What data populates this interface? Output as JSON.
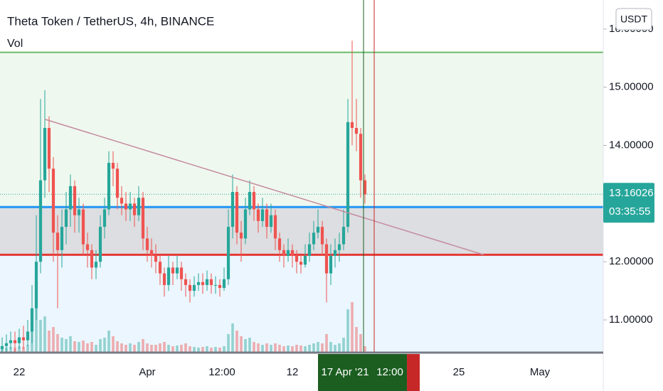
{
  "chart_data": {
    "type": "candlestick",
    "title": "Theta Token / TetherUS, 4h, BINANCE",
    "volume_label": "Vol",
    "currency": "USDT",
    "up_color": "#26a69a",
    "down_color": "#ef5350",
    "xlim": [
      -0.5,
      140.83
    ],
    "ylim": [
      10.45,
      16.5
    ],
    "yticks": [
      {
        "value": 16,
        "label": "16.00000"
      },
      {
        "value": 15,
        "label": "15.00000"
      },
      {
        "value": 14,
        "label": "14.00000"
      },
      {
        "value": 12,
        "label": "12.00000"
      },
      {
        "value": 11,
        "label": "11.00000"
      }
    ],
    "xticks": [
      {
        "value": 4,
        "label": "22"
      },
      {
        "value": 34,
        "label": "Apr"
      },
      {
        "value": 51.5,
        "label": "12:00"
      },
      {
        "value": 68,
        "label": "12"
      },
      {
        "value": 107,
        "label": "25"
      },
      {
        "value": 126,
        "label": "May"
      }
    ],
    "last_price": 13.16026,
    "countdown": "03:35:55",
    "levels": [
      {
        "price": 15.6,
        "color": "#66bb6a",
        "fill": "rgba(76,175,80,0.09)"
      },
      {
        "price": 12.94,
        "color": "#2196f3",
        "fill": "rgba(120,123,134,0.25)"
      },
      {
        "price": 12.12,
        "color": "#e53935",
        "fill": "rgba(33,150,243,0.09)"
      }
    ],
    "trendline": {
      "x": [
        10,
        112.8
      ],
      "y": [
        14.45,
        12.12
      ],
      "color": "#c48b9f"
    },
    "markers": [
      {
        "x": 84.67,
        "label": "17 Apr '21",
        "color": "#1b5e20"
      },
      {
        "x": 87.17,
        "label": "12:00",
        "color": "#c62828"
      }
    ],
    "candles": [
      [
        10.5,
        10.7,
        10.4,
        10.55
      ],
      [
        10.55,
        10.75,
        10.45,
        10.6
      ],
      [
        10.6,
        10.8,
        10.5,
        10.65
      ],
      [
        10.65,
        10.8,
        10.45,
        10.6
      ],
      [
        10.6,
        10.85,
        10.5,
        10.7
      ],
      [
        10.7,
        10.9,
        10.5,
        10.65
      ],
      [
        10.65,
        11.0,
        10.55,
        10.8
      ],
      [
        10.8,
        11.6,
        10.6,
        11.2
      ],
      [
        11.2,
        12.8,
        11.0,
        12.0
      ],
      [
        12.0,
        14.8,
        11.8,
        13.4
      ],
      [
        13.4,
        14.95,
        13.1,
        14.3
      ],
      [
        14.3,
        14.5,
        13.2,
        13.6
      ],
      [
        13.6,
        13.8,
        12.0,
        12.5
      ],
      [
        12.5,
        12.8,
        11.2,
        12.2
      ],
      [
        12.2,
        12.9,
        11.9,
        12.6
      ],
      [
        12.6,
        13.2,
        12.3,
        12.9
      ],
      [
        12.9,
        13.5,
        12.6,
        13.3
      ],
      [
        13.3,
        13.4,
        12.5,
        12.8
      ],
      [
        12.8,
        13.1,
        12.5,
        12.9
      ],
      [
        12.9,
        13.0,
        12.1,
        12.3
      ],
      [
        12.3,
        12.5,
        11.9,
        12.2
      ],
      [
        12.2,
        12.3,
        11.7,
        11.9
      ],
      [
        11.9,
        12.2,
        11.7,
        12.0
      ],
      [
        12.0,
        12.8,
        11.9,
        12.6
      ],
      [
        12.6,
        13.1,
        12.4,
        12.9
      ],
      [
        12.9,
        13.9,
        12.8,
        13.7
      ],
      [
        13.7,
        13.9,
        13.3,
        13.6
      ],
      [
        13.6,
        13.7,
        12.9,
        13.1
      ],
      [
        13.1,
        13.3,
        12.8,
        13.0
      ],
      [
        13.0,
        13.2,
        12.7,
        12.9
      ],
      [
        12.9,
        13.2,
        12.7,
        13.0
      ],
      [
        13.0,
        13.1,
        12.6,
        12.8
      ],
      [
        12.8,
        13.3,
        12.7,
        13.1
      ],
      [
        13.1,
        13.2,
        12.2,
        12.4
      ],
      [
        12.4,
        12.6,
        12.0,
        12.2
      ],
      [
        12.2,
        12.4,
        11.9,
        12.1
      ],
      [
        12.1,
        12.3,
        11.8,
        12.0
      ],
      [
        12.0,
        12.1,
        11.6,
        11.8
      ],
      [
        11.8,
        11.9,
        11.4,
        11.6
      ],
      [
        11.6,
        12.1,
        11.5,
        11.9
      ],
      [
        11.9,
        12.0,
        11.6,
        11.8
      ],
      [
        11.8,
        12.1,
        11.7,
        11.9
      ],
      [
        11.9,
        12.0,
        11.5,
        11.7
      ],
      [
        11.7,
        11.8,
        11.4,
        11.6
      ],
      [
        11.6,
        11.7,
        11.3,
        11.5
      ],
      [
        11.5,
        11.75,
        11.4,
        11.6
      ],
      [
        11.6,
        11.8,
        11.5,
        11.65
      ],
      [
        11.65,
        11.8,
        11.45,
        11.6
      ],
      [
        11.6,
        11.85,
        11.5,
        11.7
      ],
      [
        11.7,
        11.8,
        11.45,
        11.6
      ],
      [
        11.6,
        11.75,
        11.45,
        11.6
      ],
      [
        11.6,
        11.7,
        11.4,
        11.55
      ],
      [
        11.55,
        11.9,
        11.5,
        11.7
      ],
      [
        11.7,
        12.9,
        11.6,
        12.6
      ],
      [
        12.6,
        13.5,
        12.4,
        13.2
      ],
      [
        13.2,
        13.3,
        12.3,
        12.5
      ],
      [
        12.5,
        12.7,
        12.0,
        12.4
      ],
      [
        12.4,
        13.1,
        12.3,
        12.9
      ],
      [
        12.9,
        13.4,
        12.8,
        13.2
      ],
      [
        13.2,
        13.3,
        12.7,
        12.9
      ],
      [
        12.9,
        13.0,
        12.5,
        12.7
      ],
      [
        12.7,
        13.1,
        12.6,
        12.9
      ],
      [
        12.9,
        13.0,
        12.4,
        12.6
      ],
      [
        12.6,
        13.0,
        12.5,
        12.8
      ],
      [
        12.8,
        12.9,
        12.2,
        12.4
      ],
      [
        12.4,
        12.5,
        12.0,
        12.2
      ],
      [
        12.2,
        12.3,
        11.9,
        12.1
      ],
      [
        12.1,
        12.4,
        12.0,
        12.2
      ],
      [
        12.2,
        12.3,
        11.9,
        12.1
      ],
      [
        12.1,
        12.2,
        11.8,
        12.0
      ],
      [
        12.0,
        12.1,
        11.8,
        11.95
      ],
      [
        11.95,
        12.3,
        11.9,
        12.1
      ],
      [
        12.1,
        12.5,
        12.0,
        12.3
      ],
      [
        12.3,
        12.7,
        12.2,
        12.5
      ],
      [
        12.5,
        12.9,
        12.4,
        12.6
      ],
      [
        12.6,
        12.7,
        12.1,
        12.3
      ],
      [
        12.3,
        12.4,
        11.3,
        11.8
      ],
      [
        11.8,
        12.3,
        11.6,
        12.1
      ],
      [
        12.1,
        12.4,
        11.9,
        12.2
      ],
      [
        12.2,
        12.5,
        12.0,
        12.3
      ],
      [
        12.3,
        12.9,
        12.2,
        12.6
      ],
      [
        12.6,
        14.8,
        12.5,
        14.4
      ],
      [
        14.4,
        15.8,
        14.0,
        14.3
      ],
      [
        14.3,
        14.8,
        13.9,
        14.2
      ],
      [
        14.2,
        14.3,
        13.1,
        13.4
      ],
      [
        13.4,
        13.5,
        13.0,
        13.16
      ]
    ],
    "volume": [
      8,
      6,
      7,
      6,
      8,
      7,
      10,
      40,
      65,
      45,
      50,
      30,
      35,
      25,
      20,
      18,
      22,
      15,
      14,
      16,
      12,
      14,
      10,
      18,
      20,
      30,
      22,
      15,
      12,
      10,
      12,
      10,
      14,
      18,
      12,
      10,
      10,
      12,
      14,
      10,
      8,
      9,
      10,
      12,
      8,
      7,
      6,
      7,
      8,
      6,
      7,
      6,
      8,
      25,
      40,
      30,
      22,
      18,
      20,
      14,
      12,
      10,
      12,
      10,
      12,
      10,
      8,
      9,
      8,
      10,
      9,
      8,
      10,
      12,
      14,
      12,
      25,
      14,
      10,
      12,
      20,
      60,
      70,
      35,
      25,
      8
    ]
  }
}
